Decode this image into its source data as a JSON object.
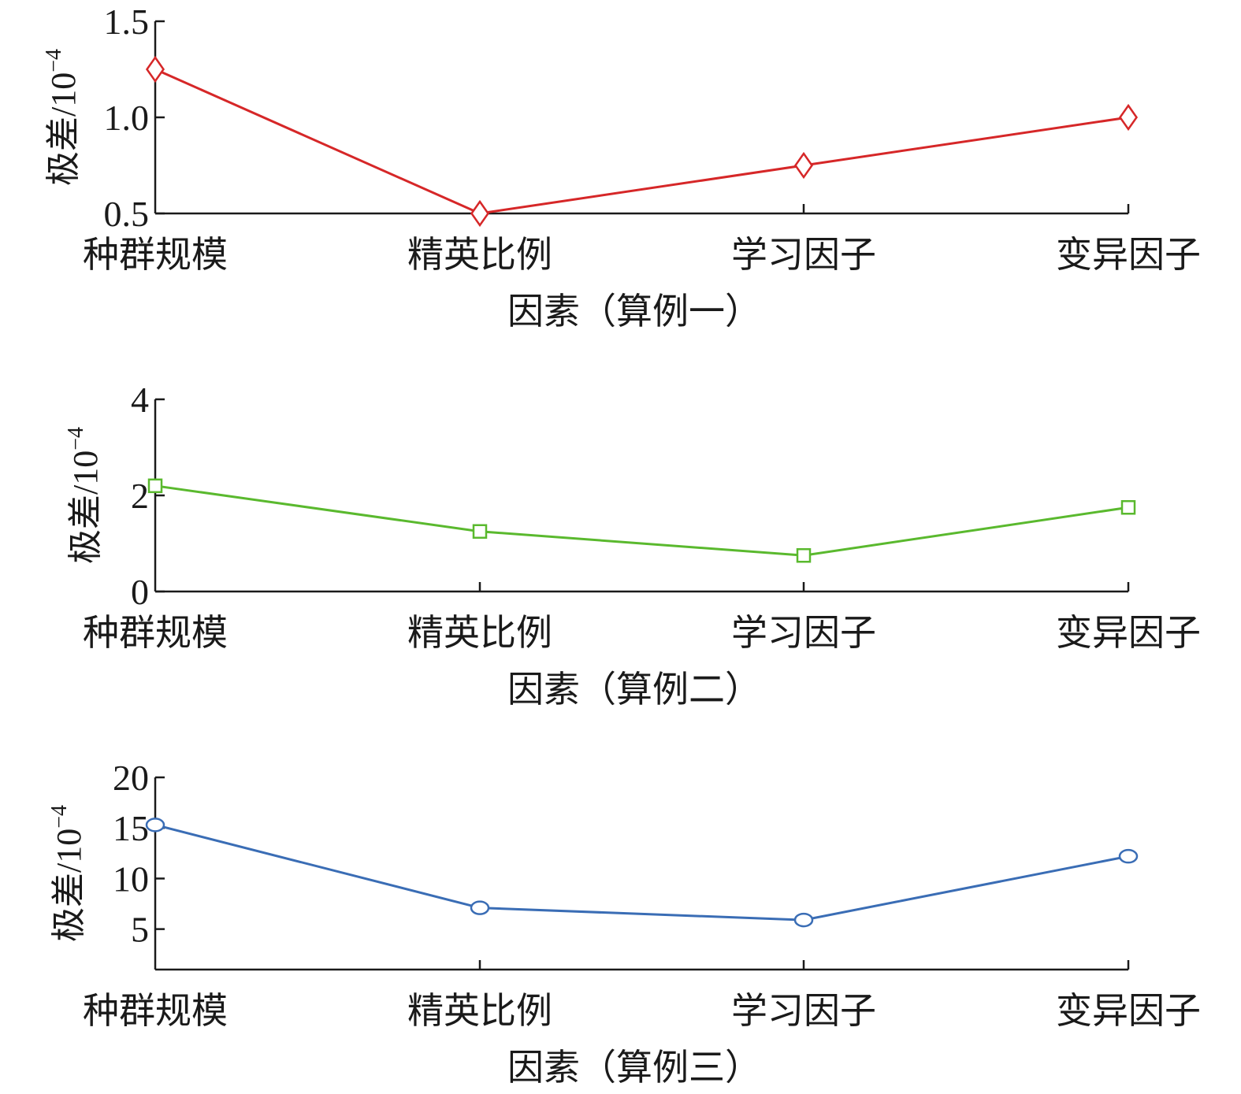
{
  "chart_data": [
    {
      "type": "line",
      "categories": [
        "种群规模",
        "精英比例",
        "学习因子",
        "变异因子"
      ],
      "series": [
        {
          "values": [
            1.25,
            0.5,
            0.75,
            1.0
          ]
        }
      ],
      "marker": "diamond",
      "color": "#d62728",
      "ylim": [
        0.5,
        1.5
      ],
      "yticks": [
        "0.5",
        "1.0",
        "1.5"
      ],
      "ytick_values": [
        0.5,
        1.0,
        1.5
      ],
      "ylabel": "极差/10",
      "ylabel_exp": "−4",
      "xlabel": "因素（算例一）"
    },
    {
      "type": "line",
      "categories": [
        "种群规模",
        "精英比例",
        "学习因子",
        "变异因子"
      ],
      "series": [
        {
          "values": [
            2.2,
            1.25,
            0.75,
            1.75
          ]
        }
      ],
      "marker": "square",
      "color": "#5ab92e",
      "ylim": [
        0,
        4
      ],
      "yticks": [
        "0",
        "2",
        "4"
      ],
      "ytick_values": [
        0,
        2,
        4
      ],
      "ylabel": "极差/10",
      "ylabel_exp": "−4",
      "xlabel": "因素（算例二）"
    },
    {
      "type": "line",
      "categories": [
        "种群规模",
        "精英比例",
        "学习因子",
        "变异因子"
      ],
      "series": [
        {
          "values": [
            15.3,
            7.1,
            5.9,
            12.2
          ]
        }
      ],
      "marker": "circle",
      "color": "#3a6db5",
      "ylim": [
        1,
        20
      ],
      "yticks": [
        "5",
        "10",
        "15",
        "20"
      ],
      "ytick_values": [
        5,
        10,
        15,
        20
      ],
      "ylabel": "极差/10",
      "ylabel_exp": "−4",
      "xlabel": "因素（算例三）"
    }
  ]
}
